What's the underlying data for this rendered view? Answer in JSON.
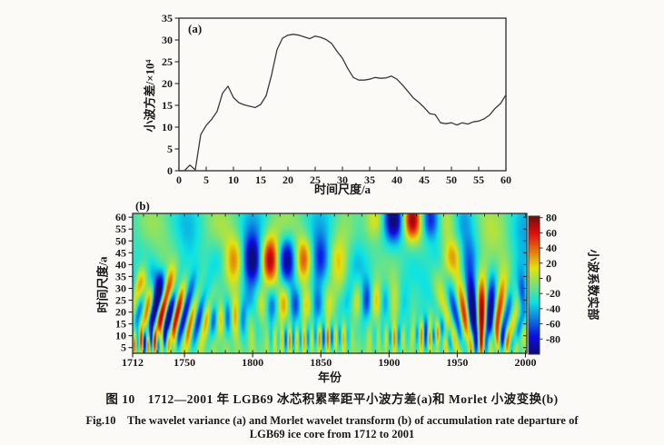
{
  "figure": {
    "panel_a": {
      "panel_label": "(a)",
      "xlabel": "时间尺度/a",
      "ylabel": "小波方差/×10⁴"
    },
    "panel_b": {
      "panel_label": "(b)",
      "xlabel": "年份",
      "ylabel": "时间尺度/a",
      "colorbar_label": "小波系数实部"
    }
  },
  "caption": {
    "line_zh": "图 10　1712—2001 年 LGB69 冰芯积累率距平小波方差(a)和 Morlet 小波变换(b)",
    "line_en_1": "Fig.10　The wavelet variance (a) and Morlet wavelet transform (b) of accumulation rate departure of",
    "line_en_2": "LGB69 ice core from 1712 to 2001"
  },
  "chart_data": [
    {
      "id": "wavelet_variance",
      "type": "line",
      "panel_label": "(a)",
      "xlabel": "时间尺度/a",
      "ylabel": "小波方差/×10⁴",
      "xlim": [
        0,
        60
      ],
      "ylim": [
        0,
        35
      ],
      "xticks": [
        0,
        5,
        10,
        15,
        20,
        25,
        30,
        35,
        40,
        45,
        50,
        55,
        60
      ],
      "yticks": [
        0,
        5,
        10,
        15,
        20,
        25,
        30,
        35
      ],
      "grid": false,
      "line_color": "#3a3a3a",
      "x": [
        0,
        1,
        2,
        3,
        4,
        5,
        6,
        7,
        8,
        9,
        10,
        11,
        12,
        13,
        14,
        15,
        16,
        17,
        18,
        19,
        20,
        21,
        22,
        23,
        24,
        25,
        26,
        27,
        28,
        29,
        30,
        31,
        32,
        33,
        34,
        35,
        36,
        37,
        38,
        39,
        40,
        41,
        42,
        43,
        44,
        45,
        46,
        47,
        48,
        49,
        50,
        51,
        52,
        53,
        54,
        55,
        56,
        57,
        58,
        59,
        60
      ],
      "y": [
        0,
        0,
        1.3,
        0.2,
        8.3,
        10.4,
        11.8,
        13.6,
        17.8,
        19.4,
        16.8,
        15.6,
        15.1,
        14.8,
        14.5,
        15.2,
        17.2,
        22.0,
        27.8,
        30.4,
        31.1,
        31.3,
        31.1,
        30.7,
        30.3,
        30.9,
        30.6,
        30.1,
        29.2,
        27.4,
        25.8,
        23.4,
        21.4,
        20.8,
        20.8,
        21.0,
        21.4,
        21.2,
        21.3,
        21.7,
        21.0,
        19.7,
        18.2,
        16.7,
        15.7,
        14.5,
        13.1,
        12.9,
        11.0,
        10.8,
        11.0,
        10.5,
        11.0,
        10.7,
        11.2,
        11.4,
        11.9,
        12.8,
        14.3,
        15.4,
        17.4
      ]
    },
    {
      "id": "morlet_wavelet_transform",
      "type": "heatmap",
      "panel_label": "(b)",
      "xlabel": "年份",
      "ylabel": "时间尺度/a",
      "colorbar_label": "小波系数实部",
      "xlim": [
        1712,
        2001
      ],
      "ylim": [
        2.6,
        61.6
      ],
      "xticks": [
        1712,
        1750,
        1800,
        1850,
        1900,
        1950,
        2000
      ],
      "xticks_minor_step": 10,
      "yticks": [
        5,
        10,
        15,
        20,
        25,
        30,
        35,
        40,
        45,
        50,
        55,
        60
      ],
      "colorbar_ticks": [
        80,
        60,
        40,
        20,
        0,
        -20,
        -40,
        -60,
        -80
      ],
      "colormap": "jet",
      "value_domain": [
        -100,
        82
      ],
      "base": {
        "offset": -20,
        "low_scale_boost": 13,
        "low_scale_sigma": 11
      },
      "atoms": [
        {
          "t0": 1726,
          "s0": 31,
          "st": 12,
          "ss": 5.5,
          "P": 23,
          "tp": 1719,
          "A": 72
        },
        {
          "t0": 1738,
          "s0": 19,
          "st": 18,
          "ss": 9,
          "P": 11.5,
          "tp": 1733,
          "A": 88,
          "tilt": 0.4
        },
        {
          "t0": 1780,
          "s0": 17,
          "st": 13,
          "ss": 6,
          "P": 11,
          "tp": 1776,
          "A": 42
        },
        {
          "t0": 1830,
          "s0": 23,
          "st": 30,
          "ss": 5.5,
          "P": 17,
          "tp": 1806,
          "A": 48
        },
        {
          "t0": 1820,
          "s0": 42,
          "st": 28,
          "ss": 7,
          "P": 26,
          "tp": 1812,
          "A": 90
        },
        {
          "t0": 1916,
          "s0": 59,
          "st": 20,
          "ss": 6,
          "P": 28,
          "tp": 1917,
          "A": 88
        },
        {
          "t0": 1968,
          "s0": 20,
          "st": 17,
          "ss": 11,
          "P": 13,
          "tp": 1968,
          "A": 95,
          "fan": 0.02
        },
        {
          "t0": 1947,
          "s0": 44,
          "st": 10,
          "ss": 6,
          "P": 30,
          "tp": 1947,
          "A": 45
        },
        {
          "t0": 1885,
          "s0": 25,
          "st": 14,
          "ss": 6,
          "P": 14,
          "tp": 1877,
          "A": 40
        },
        {
          "t0": 1722,
          "s0": 7,
          "st": 12,
          "ss": 4,
          "P": 5,
          "tp": 1713,
          "A": 62
        },
        {
          "t0": 1828,
          "s0": 8,
          "st": 10,
          "ss": 4,
          "P": 5.5,
          "tp": 1827,
          "A": 45
        },
        {
          "t0": 1856,
          "s0": 9,
          "st": 10,
          "ss": 4,
          "P": 6,
          "tp": 1855,
          "A": 52
        },
        {
          "t0": 1905,
          "s0": 9,
          "st": 10,
          "ss": 4,
          "P": 6,
          "tp": 1904,
          "A": 38
        },
        {
          "t0": 1928,
          "s0": 10,
          "st": 10,
          "ss": 4.5,
          "P": 6,
          "tp": 1924,
          "A": 52
        },
        {
          "t0": 1975,
          "s0": 7,
          "st": 14,
          "ss": 4,
          "P": 6.5,
          "tp": 1974,
          "A": 38
        },
        {
          "t0": 1998,
          "s0": 28,
          "st": 6,
          "ss": 5,
          "P": 13,
          "tp": 2004.5,
          "A": 45
        },
        {
          "t0": 0,
          "s0": 8,
          "st": 0,
          "ss": 6,
          "P": 9.5,
          "tp": 1714,
          "A": 9
        },
        {
          "t0": 0,
          "s0": 20,
          "st": 0,
          "ss": 9,
          "P": 17,
          "tp": 1715,
          "A": 8
        },
        {
          "t0": 0,
          "s0": 38,
          "st": 0,
          "ss": 12,
          "P": 40,
          "tp": 1780,
          "A": 14
        },
        {
          "t0": 0,
          "s0": 57,
          "st": 0,
          "ss": 9,
          "P": 50,
          "tp": 1775,
          "A": 20
        }
      ]
    }
  ]
}
